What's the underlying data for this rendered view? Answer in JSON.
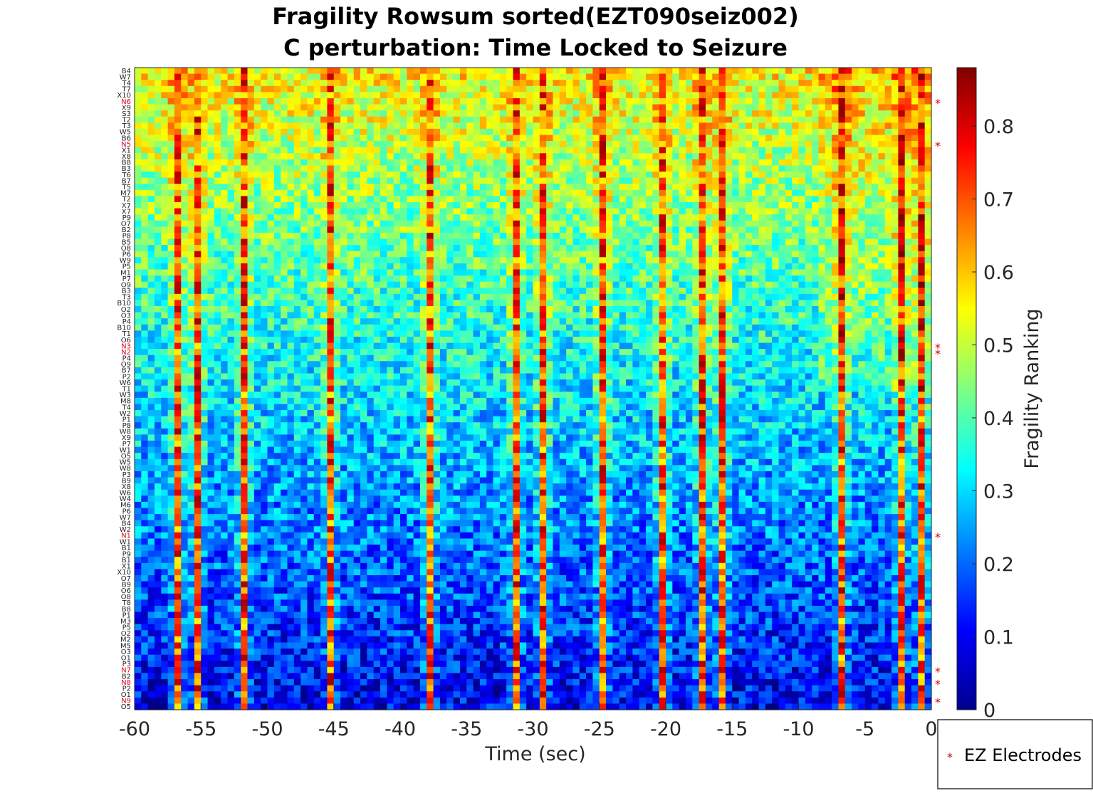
{
  "chart_data": {
    "type": "heatmap",
    "title": "Fragility Rowsum sorted(EZT090seiz002)",
    "subtitle": "C perturbation:  Time Locked to Seizure",
    "xlabel": "Time (sec)",
    "x_ticks": [
      "-60",
      "-55",
      "-50",
      "-45",
      "-40",
      "-35",
      "-30",
      "-25",
      "-20",
      "-15",
      "-10",
      "-5",
      "0"
    ],
    "xlim": [
      -60,
      0
    ],
    "colorbar": {
      "label": "Fragility Ranking",
      "ticks": [
        "0",
        "0.1",
        "0.2",
        "0.3",
        "0.4",
        "0.5",
        "0.6",
        "0.7",
        "0.8"
      ],
      "range": [
        0,
        0.88
      ],
      "colormap": "jet"
    },
    "channels": [
      "B4",
      "W7",
      "T4",
      "T7",
      "X10",
      "N6",
      "X9",
      "S3",
      "T2",
      "T3",
      "W5",
      "B6",
      "N5",
      "X1",
      "X8",
      "B8",
      "B3",
      "T6",
      "B7",
      "T5",
      "M7",
      "T2",
      "X7",
      "X7",
      "P9",
      "O7",
      "B2",
      "P8",
      "B5",
      "O8",
      "P6",
      "W9",
      "P5",
      "M1",
      "P7",
      "O9",
      "B3",
      "T3",
      "B10",
      "O2",
      "O3",
      "P4",
      "B10",
      "T1",
      "O6",
      "N3",
      "N2",
      "P4",
      "O9",
      "B7",
      "P2",
      "W6",
      "T1",
      "W3",
      "M8",
      "T4",
      "W2",
      "P1",
      "P8",
      "W8",
      "X9",
      "P7",
      "W1",
      "O5",
      "W5",
      "W8",
      "P3",
      "B9",
      "X8",
      "W6",
      "W4",
      "M6",
      "P6",
      "W7",
      "B4",
      "W2",
      "N1",
      "W1",
      "B1",
      "P9",
      "B1",
      "X1",
      "X10",
      "O7",
      "B9",
      "O6",
      "O8",
      "T8",
      "B8",
      "P1",
      "M3",
      "P5",
      "O2",
      "M2",
      "M5",
      "O3",
      "O1",
      "P3",
      "N7",
      "B2",
      "N8",
      "P2",
      "O1",
      "N9",
      "O5"
    ],
    "ez_electrodes": [
      "N6",
      "N5",
      "N3",
      "N2",
      "N1",
      "N7",
      "N8",
      "N9"
    ],
    "channel_baseline": "decreases from ~0.55 (top rows) to ~0.10 (bottom rows)",
    "hot_time_columns_sec": [
      -57.2,
      -55.7,
      -51.8,
      -45.7,
      -38.1,
      -31.3,
      -29.5,
      -25.2,
      -20.3,
      -17.5,
      -16.0,
      -7.0,
      -2.5,
      -1.1
    ],
    "legend": {
      "label": "EZ Electrodes",
      "marker": "*",
      "placement": "bottom-right outside"
    }
  }
}
